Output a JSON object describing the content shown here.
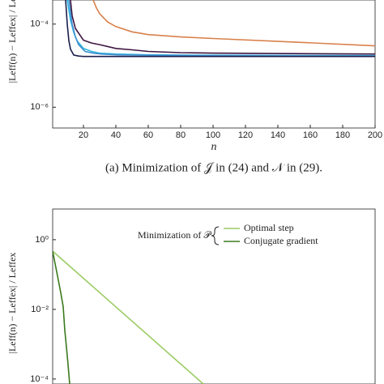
{
  "chart_data": [
    {
      "type": "line",
      "log_y": true,
      "ylabel": "|Leff(n) − Leffex| / Leffex",
      "xlabel": "n",
      "caption": "(a) Minimization of 𝒥 in (24) and 𝒩 in (29).",
      "xlim": [
        1,
        200
      ],
      "ylim": [
        3.16e-07,
        0.00038
      ],
      "xticks": [
        20,
        40,
        60,
        80,
        100,
        120,
        140,
        160,
        180,
        200
      ],
      "yticks": [
        {
          "value": 0.0001,
          "label": "10⁻⁴"
        },
        {
          "value": 1e-06,
          "label": "10⁻⁶"
        }
      ],
      "series": [
        {
          "color": "#d9804a",
          "x": [
            26,
            28,
            30,
            35,
            40,
            50,
            60,
            80,
            100,
            150,
            200
          ],
          "values": [
            0.00038,
            0.000245,
            0.000178,
            0.000112,
            8.7e-05,
            6.5e-05,
            5.6e-05,
            4.9e-05,
            4.5e-05,
            3.7e-05,
            3e-05
          ]
        },
        {
          "color": "#3d1540",
          "x": [
            12,
            13,
            15,
            20,
            25,
            30,
            40,
            50,
            60,
            80,
            100,
            150,
            200
          ],
          "values": [
            0.00038,
            0.00016,
            7.9e-05,
            4.1e-05,
            3.5e-05,
            3.2e-05,
            2.6e-05,
            2.4e-05,
            2.2e-05,
            2.05e-05,
            2e-05,
            1.95e-05,
            1.9e-05
          ]
        },
        {
          "color": "#2fb5e0",
          "x": [
            10,
            12,
            14,
            16,
            20,
            25,
            30,
            40,
            60,
            100,
            200
          ],
          "values": [
            0.00038,
            0.000126,
            6.3e-05,
            4e-05,
            2.6e-05,
            2.2e-05,
            2e-05,
            1.9e-05,
            1.82e-05,
            1.78e-05,
            1.74e-05
          ]
        },
        {
          "color": "#3f8fd0",
          "x": [
            11,
            13,
            15,
            17,
            21,
            26,
            31,
            41,
            61,
            101,
            200
          ],
          "values": [
            0.00038,
            0.0001,
            5e-05,
            3.2e-05,
            2.2e-05,
            2e-05,
            1.9e-05,
            1.82e-05,
            1.78e-05,
            1.74e-05,
            1.7e-05
          ]
        },
        {
          "color": "#1a1f4d",
          "x": [
            9,
            10,
            11,
            12,
            14,
            17,
            20,
            30,
            60,
            100,
            200
          ],
          "values": [
            0.00038,
            0.0001,
            4e-05,
            2.5e-05,
            1.8e-05,
            1.7e-05,
            1.66e-05,
            1.66e-05,
            1.66e-05,
            1.66e-05,
            1.66e-05
          ]
        }
      ]
    },
    {
      "type": "line",
      "log_y": true,
      "ylabel": "|Leff(n) − Leffex| / Leffex",
      "legend_title": "Minimization of 𝒫",
      "legend": "upper right",
      "xlim": [
        1,
        200
      ],
      "ylim": [
        7.2e-05,
        7.6
      ],
      "yticks": [
        {
          "value": 1,
          "label": "10⁰"
        },
        {
          "value": 0.01,
          "label": "10⁻²"
        },
        {
          "value": 0.0001,
          "label": "10⁻⁴"
        }
      ],
      "series": [
        {
          "name": "Optimal step",
          "color": "#9ccc65",
          "x": [
            1,
            94
          ],
          "values": [
            0.47,
            7.2e-05
          ]
        },
        {
          "name": "Conjugate gradient",
          "color": "#3b7a1e",
          "x": [
            1,
            3.5,
            6,
            7.5,
            8.5,
            9.5,
            10.5,
            11.5
          ],
          "values": [
            0.47,
            0.12,
            0.03,
            0.012,
            0.0025,
            0.00083,
            0.00026,
            7.2e-05
          ]
        }
      ]
    }
  ]
}
